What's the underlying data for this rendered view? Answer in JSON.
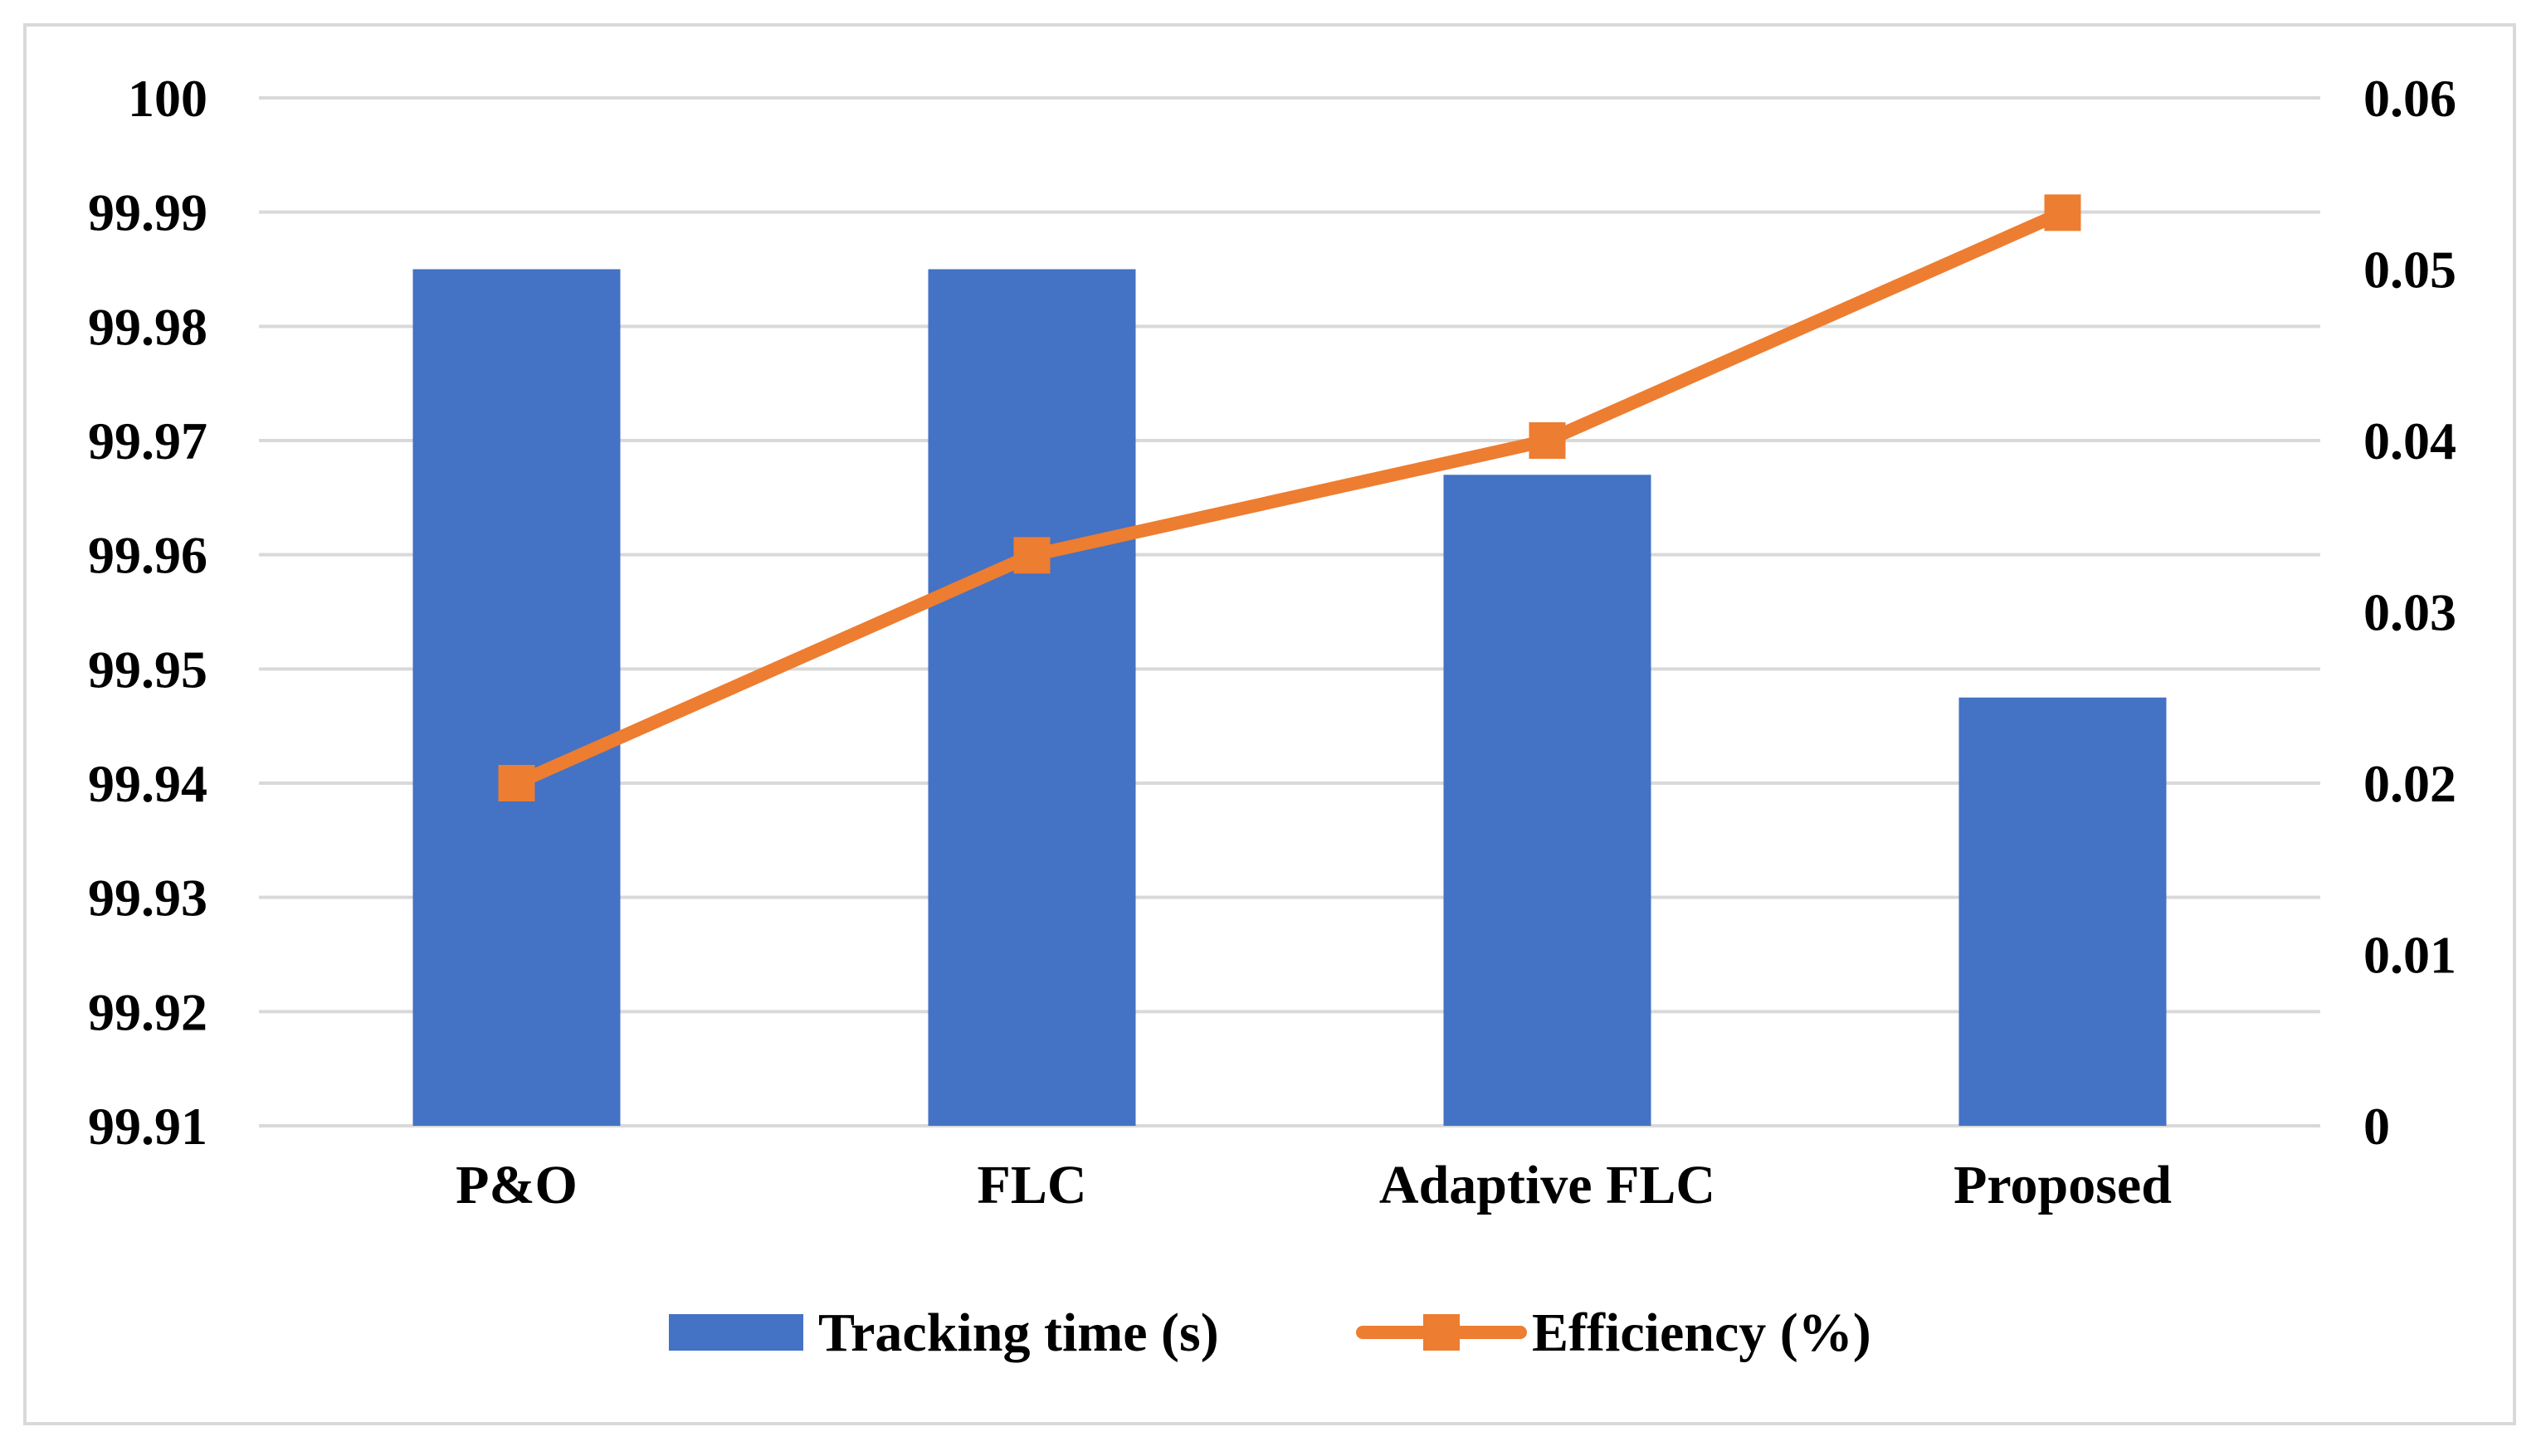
{
  "chart_data": {
    "type": "bar",
    "categories": [
      "P&O",
      "FLC",
      "Adaptive FLC",
      "Proposed"
    ],
    "series": [
      {
        "name": "Tracking time (s)",
        "type": "bar",
        "axis": "left",
        "values": [
          99.985,
          99.985,
          99.967,
          99.9475
        ],
        "color": "#4472c4"
      },
      {
        "name": "Efficiency (%)",
        "type": "line",
        "axis": "right",
        "marker": "square",
        "values": [
          0.02,
          0.0333,
          0.04,
          0.0533
        ],
        "color": "#ed7d31"
      }
    ],
    "y_left": {
      "ylim": [
        99.91,
        100
      ],
      "ticks": [
        "99.91",
        "99.92",
        "99.93",
        "99.94",
        "99.95",
        "99.96",
        "99.97",
        "99.98",
        "99.99",
        "100"
      ]
    },
    "y_right": {
      "ylim": [
        0,
        0.06
      ],
      "ticks": [
        "0",
        "0.01",
        "0.02",
        "0.03",
        "0.04",
        "0.05",
        "0.06"
      ]
    },
    "title": "",
    "xlabel": "",
    "ylabel": "",
    "grid": true,
    "gridline_color": "#d9d9d9",
    "legend_position": "bottom"
  }
}
